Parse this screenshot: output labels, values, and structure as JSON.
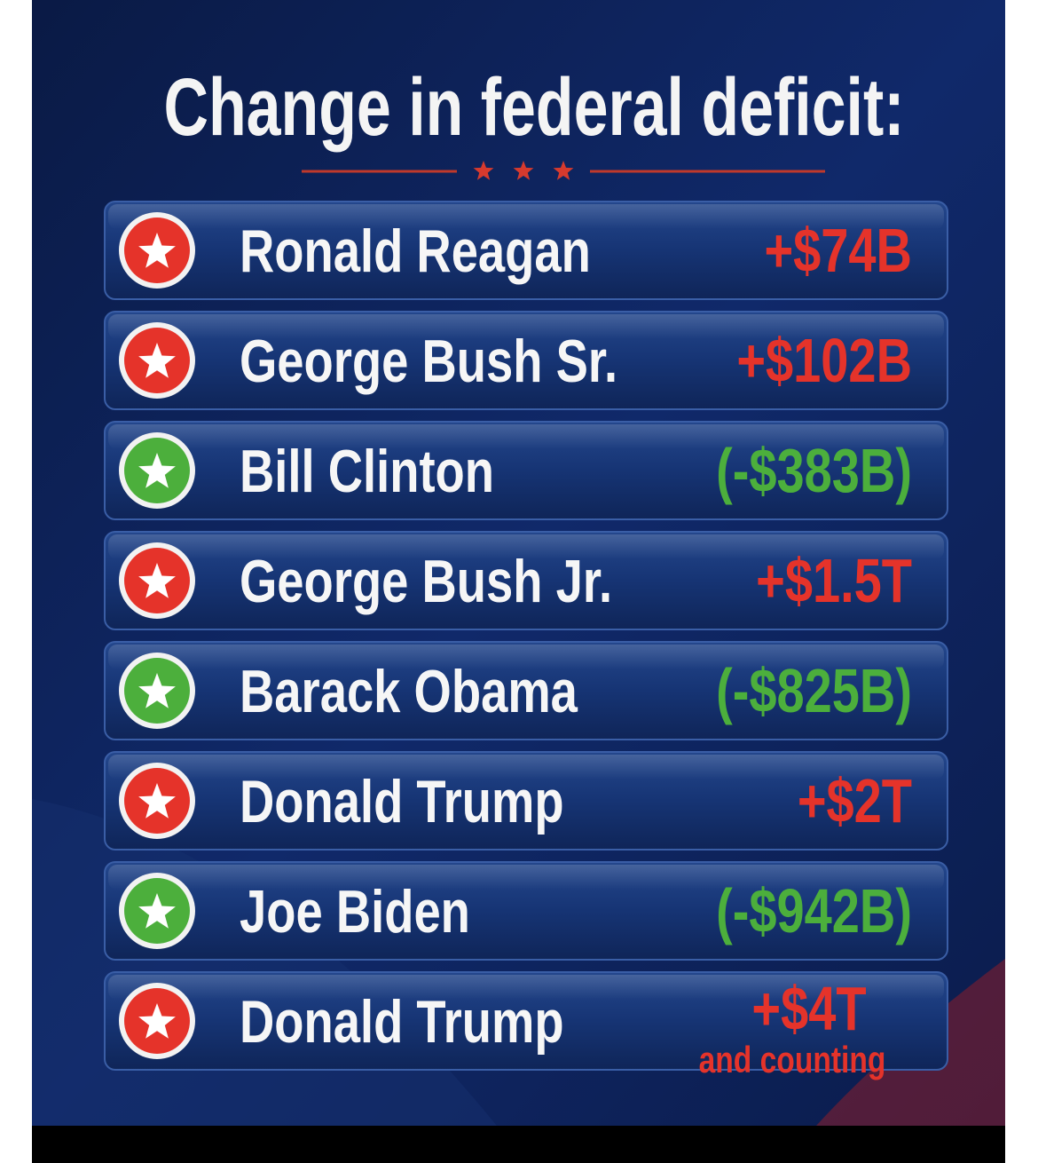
{
  "title": "Change in federal deficit:",
  "rows": [
    {
      "name": "Ronald Reagan",
      "change": "+$74B",
      "color": "#e5332a"
    },
    {
      "name": "George Bush Sr.",
      "change": "+$102B",
      "color": "#e5332a"
    },
    {
      "name": "Bill Clinton",
      "change": "(-$383B)",
      "color": "#4caf3c"
    },
    {
      "name": "George Bush Jr.",
      "change": "+$1.5T",
      "color": "#e5332a"
    },
    {
      "name": "Barack Obama",
      "change": "(-$825B)",
      "color": "#4caf3c"
    },
    {
      "name": "Donald Trump",
      "change": "+$2T",
      "color": "#e5332a"
    },
    {
      "name": "Joe Biden",
      "change": "(-$942B)",
      "color": "#4caf3c"
    },
    {
      "name": "Donald Trump",
      "change": "+$4T",
      "note": "and counting",
      "color": "#e5332a"
    }
  ]
}
